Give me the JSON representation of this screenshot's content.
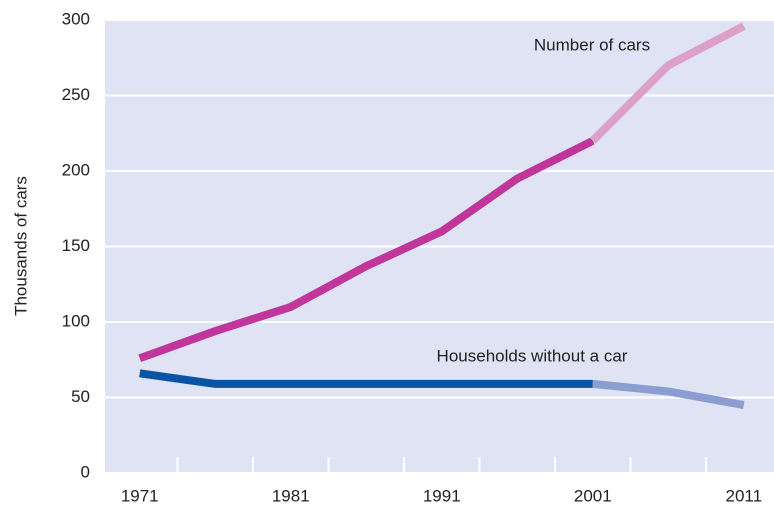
{
  "chart_data": {
    "type": "line",
    "y_label": "Thousands of cars",
    "x": [
      1971,
      1976,
      1981,
      1986,
      1991,
      1996,
      2001,
      2006,
      2011
    ],
    "series": [
      {
        "name": "Number of cars",
        "color": "#c0369b",
        "projection_color": "#dca0c9",
        "values": [
          76,
          94,
          110,
          137,
          160,
          195,
          220,
          270,
          296
        ]
      },
      {
        "name": "Households without a car",
        "color": "#0a54a4",
        "projection_color": "#8a9ed2",
        "values": [
          66,
          59,
          59,
          59,
          59,
          59,
          59,
          54,
          45
        ]
      }
    ],
    "projection_start": 2001,
    "xlim": [
      1968.7,
      2013
    ],
    "xticks": [
      1971,
      1981,
      1991,
      2001,
      2011
    ],
    "xticks_minor": [
      1973.5,
      1978.5,
      1983.5,
      1988.5,
      1993.5,
      1998.5,
      2003.5,
      2008.5
    ],
    "ylim": [
      0,
      300
    ],
    "yticks": [
      0,
      50,
      100,
      150,
      200,
      250,
      300
    ],
    "grid": true,
    "background": "#e0e3f4"
  }
}
